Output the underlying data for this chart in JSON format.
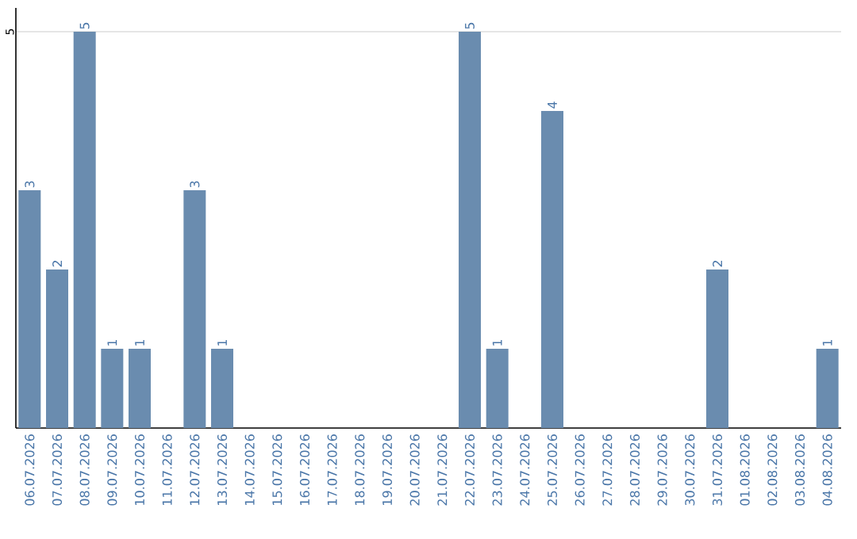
{
  "chart_data": {
    "type": "bar",
    "categories": [
      "06.07.2026",
      "07.07.2026",
      "08.07.2026",
      "09.07.2026",
      "10.07.2026",
      "11.07.2026",
      "12.07.2026",
      "13.07.2026",
      "14.07.2026",
      "15.07.2026",
      "16.07.2026",
      "17.07.2026",
      "18.07.2026",
      "19.07.2026",
      "20.07.2026",
      "21.07.2026",
      "22.07.2026",
      "23.07.2026",
      "24.07.2026",
      "25.07.2026",
      "26.07.2026",
      "27.07.2026",
      "28.07.2026",
      "29.07.2026",
      "30.07.2026",
      "31.07.2026",
      "01.08.2026",
      "02.08.2026",
      "03.08.2026",
      "04.08.2026"
    ],
    "values": [
      3,
      2,
      5,
      1,
      1,
      0,
      3,
      1,
      0,
      0,
      0,
      0,
      0,
      0,
      0,
      0,
      5,
      1,
      0,
      4,
      0,
      0,
      0,
      0,
      0,
      2,
      0,
      0,
      0,
      1
    ],
    "value_labels": [
      "3",
      "2",
      "5",
      "1",
      "1",
      null,
      "3",
      "1",
      null,
      null,
      null,
      null,
      null,
      null,
      null,
      null,
      "5",
      "1",
      null,
      "4",
      null,
      null,
      null,
      null,
      null,
      "2",
      null,
      null,
      null,
      "1"
    ],
    "color": "#6a8caf",
    "ylim": [
      0,
      5.3
    ],
    "yticks": [
      5
    ],
    "grid": "y"
  }
}
